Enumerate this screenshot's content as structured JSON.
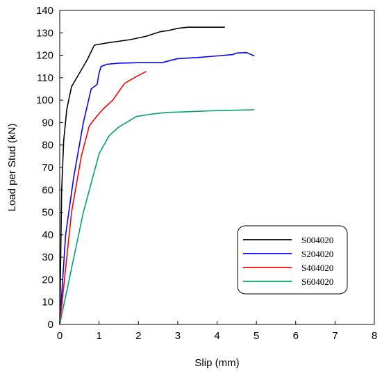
{
  "chart_data": {
    "type": "line",
    "title": "",
    "xlabel": "Slip (mm)",
    "ylabel": "Load per Stud (kN)",
    "xlim": [
      0,
      8
    ],
    "ylim": [
      0,
      140
    ],
    "xticks": [
      "0",
      "1",
      "2",
      "3",
      "4",
      "5",
      "6",
      "7",
      "8"
    ],
    "yticks": [
      "0",
      "10",
      "20",
      "30",
      "40",
      "50",
      "60",
      "70",
      "80",
      "90",
      "100",
      "110",
      "120",
      "130",
      "140"
    ],
    "grid": false,
    "legend_position": "bottom-right",
    "series": [
      {
        "name": "S004020",
        "color": "#000000",
        "x": [
          0,
          0.05,
          0.1,
          0.18,
          0.3,
          0.5,
          0.7,
          0.88,
          1.2,
          1.8,
          2.2,
          2.55,
          2.75,
          3.0,
          3.25,
          3.5,
          3.8,
          4.2
        ],
        "y": [
          0,
          60,
          82,
          96,
          106,
          112,
          118,
          124.5,
          125.5,
          127,
          128.5,
          130.5,
          131,
          132,
          132.5,
          132.5,
          132.5,
          132.5
        ]
      },
      {
        "name": "S204020",
        "color": "#0000ff",
        "x": [
          0,
          0.15,
          0.35,
          0.6,
          0.8,
          0.95,
          1.0,
          1.05,
          1.2,
          1.5,
          2.0,
          2.6,
          3.0,
          3.5,
          4.0,
          4.4,
          4.5,
          4.75,
          4.95
        ],
        "y": [
          0,
          40,
          65,
          90,
          105,
          107,
          112,
          115,
          116,
          116.5,
          116.7,
          116.7,
          118.5,
          119,
          119.7,
          120.3,
          121,
          121.2,
          119.7
        ]
      },
      {
        "name": "S404020",
        "color": "#ff0000",
        "x": [
          0,
          0.15,
          0.3,
          0.55,
          0.75,
          0.95,
          1.1,
          1.35,
          1.65,
          1.95,
          2.2
        ],
        "y": [
          0,
          25,
          50,
          75,
          88.5,
          93,
          96,
          100,
          107.5,
          110.5,
          112.8
        ]
      },
      {
        "name": "S604020",
        "color": "#00a070",
        "x": [
          0,
          0.3,
          0.6,
          1.0,
          1.25,
          1.5,
          1.95,
          2.3,
          2.7,
          3.2,
          3.8,
          4.4,
          4.95
        ],
        "y": [
          0,
          25,
          50,
          76,
          84,
          88,
          92.7,
          93.7,
          94.5,
          94.8,
          95.2,
          95.5,
          95.7
        ]
      }
    ]
  }
}
